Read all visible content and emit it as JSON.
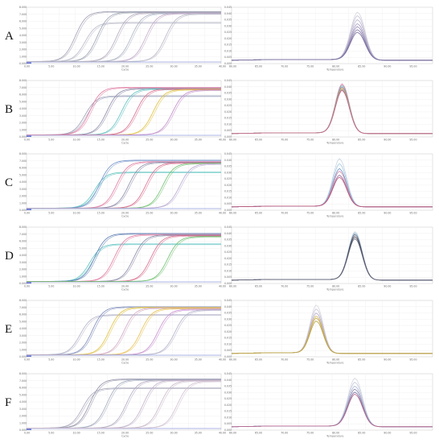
{
  "figure": {
    "rows": [
      {
        "label": "A",
        "amp_curves": [
          {
            "ct": 10.0,
            "plateau": 1.0,
            "color": "#a0a0b4"
          },
          {
            "ct": 12.0,
            "plateau": 0.78,
            "color": "#b8b8c8"
          },
          {
            "ct": 14.5,
            "plateau": 0.99,
            "color": "#9aa0b0"
          },
          {
            "ct": 18.5,
            "plateau": 0.98,
            "color": "#b0a8bc"
          },
          {
            "ct": 21.5,
            "plateau": 0.97,
            "color": "#a8b0c0"
          },
          {
            "ct": 24.5,
            "plateau": 0.97,
            "color": "#c0a8c8"
          },
          {
            "ct": 28.5,
            "plateau": 0.96,
            "color": "#b4b4c4"
          }
        ],
        "melt": {
          "peak_temp": 84.5,
          "width": 2.0,
          "heights": [
            0.95,
            0.88,
            0.8,
            0.72,
            0.66,
            0.6,
            0.55
          ],
          "colors": [
            "#d4d4dc",
            "#c8c4d8",
            "#b8b0cc",
            "#a89cc0",
            "#9488b4",
            "#8478a8",
            "#7a6e9e"
          ]
        }
      },
      {
        "label": "B",
        "amp_curves": [
          {
            "ct": 12.0,
            "plateau": 0.78,
            "color": "#9aa0b8"
          },
          {
            "ct": 13.0,
            "plateau": 0.95,
            "color": "#e07aa0"
          },
          {
            "ct": 16.5,
            "plateau": 0.93,
            "color": "#8a8aa8"
          },
          {
            "ct": 19.5,
            "plateau": 0.92,
            "color": "#60c0c0"
          },
          {
            "ct": 22.5,
            "plateau": 0.92,
            "color": "#d86c8c"
          },
          {
            "ct": 26.0,
            "plateau": 0.91,
            "color": "#e0c040"
          },
          {
            "ct": 30.0,
            "plateau": 0.9,
            "color": "#c08ac8"
          }
        ],
        "melt": {
          "peak_temp": 81.5,
          "width": 1.9,
          "heights": [
            0.98,
            0.95,
            0.92,
            0.9,
            0.87,
            0.85
          ],
          "colors": [
            "#e07aa0",
            "#70b8c0",
            "#9a8ab8",
            "#d4a040",
            "#888898",
            "#c86a8a"
          ]
        }
      },
      {
        "label": "C",
        "amp_curves": [
          {
            "ct": 14.0,
            "plateau": 0.72,
            "color": "#5cc4c0"
          },
          {
            "ct": 15.0,
            "plateau": 0.96,
            "color": "#7090c8"
          },
          {
            "ct": 18.5,
            "plateau": 0.93,
            "color": "#e07aa0"
          },
          {
            "ct": 21.0,
            "plateau": 0.92,
            "color": "#8a8aa8"
          },
          {
            "ct": 24.5,
            "plateau": 0.91,
            "color": "#d86c8c"
          },
          {
            "ct": 28.0,
            "plateau": 0.9,
            "color": "#70c070"
          },
          {
            "ct": 31.5,
            "plateau": 0.89,
            "color": "#b8a8d0"
          }
        ],
        "melt": {
          "peak_temp": 81.0,
          "width": 1.9,
          "heights": [
            0.95,
            0.85,
            0.75,
            0.7,
            0.62,
            0.58
          ],
          "colors": [
            "#c8d4e0",
            "#a0c8e0",
            "#7090c8",
            "#d88aa8",
            "#8a6a9e",
            "#c05878"
          ]
        }
      },
      {
        "label": "D",
        "amp_curves": [
          {
            "ct": 13.0,
            "plateau": 0.75,
            "color": "#60c4c4"
          },
          {
            "ct": 14.0,
            "plateau": 0.96,
            "color": "#5a7ab0"
          },
          {
            "ct": 18.0,
            "plateau": 0.94,
            "color": "#e07aa0"
          },
          {
            "ct": 22.0,
            "plateau": 0.93,
            "color": "#8a8aa8"
          },
          {
            "ct": 25.5,
            "plateau": 0.92,
            "color": "#d86c8c"
          },
          {
            "ct": 29.0,
            "plateau": 0.9,
            "color": "#70c070"
          }
        ],
        "melt": {
          "peak_temp": 84.0,
          "width": 1.9,
          "heights": [
            0.96,
            0.93,
            0.9,
            0.86,
            0.82
          ],
          "colors": [
            "#c8d4e0",
            "#8ab0d0",
            "#5a5a70",
            "#3a3a48",
            "#6a6a80"
          ]
        }
      },
      {
        "label": "E",
        "amp_curves": [
          {
            "ct": 11.0,
            "plateau": 0.8,
            "color": "#b0b0c8"
          },
          {
            "ct": 13.5,
            "plateau": 0.96,
            "color": "#7a88b8"
          },
          {
            "ct": 17.0,
            "plateau": 0.95,
            "color": "#e0c040"
          },
          {
            "ct": 20.0,
            "plateau": 0.94,
            "color": "#d0a8c0"
          },
          {
            "ct": 23.5,
            "plateau": 0.93,
            "color": "#e8c050"
          },
          {
            "ct": 27.0,
            "plateau": 0.91,
            "color": "#c890d0"
          },
          {
            "ct": 30.5,
            "plateau": 0.9,
            "color": "#b0b0c8"
          }
        ],
        "melt": {
          "peak_temp": 76.5,
          "width": 1.8,
          "heights": [
            0.96,
            0.88,
            0.8,
            0.74,
            0.7,
            0.64
          ],
          "colors": [
            "#d8d8e0",
            "#c8c0d8",
            "#b0a8c8",
            "#d4b860",
            "#c8a848",
            "#b8a040"
          ]
        }
      },
      {
        "label": "F",
        "amp_curves": [
          {
            "ct": 11.5,
            "plateau": 0.8,
            "color": "#a8a8bc"
          },
          {
            "ct": 13.0,
            "plateau": 0.98,
            "color": "#9090a8"
          },
          {
            "ct": 16.5,
            "plateau": 0.97,
            "color": "#a0a8bc"
          },
          {
            "ct": 20.5,
            "plateau": 0.96,
            "color": "#b0a8c0"
          },
          {
            "ct": 24.0,
            "plateau": 0.96,
            "color": "#c0b0c8"
          },
          {
            "ct": 27.5,
            "plateau": 0.95,
            "color": "#c8b8c8"
          },
          {
            "ct": 31.0,
            "plateau": 0.94,
            "color": "#d0c0d0"
          }
        ],
        "melt": {
          "peak_temp": 84.0,
          "width": 2.0,
          "heights": [
            0.96,
            0.88,
            0.8,
            0.74,
            0.68,
            0.64
          ],
          "colors": [
            "#d4d4e0",
            "#c0c8dc",
            "#a8b4d0",
            "#9088b0",
            "#7a6ea0",
            "#c06a90"
          ]
        }
      }
    ]
  },
  "chart_data": [
    {
      "type": "line",
      "panel": "amplification",
      "x_axis": {
        "range": [
          0,
          40
        ],
        "ticks": [
          "0.00",
          "5.00",
          "10.00",
          "15.00",
          "20.00",
          "25.00",
          "30.00",
          "35.00",
          "40.00"
        ]
      },
      "y_axis": {
        "range": [
          0,
          8
        ]
      }
    },
    {
      "type": "line",
      "panel": "melt",
      "x_axis": {
        "range": [
          60,
          99
        ],
        "ticks": [
          "60.00",
          "65.00",
          "70.00",
          "75.00",
          "80.00",
          "85.00",
          "90.00",
          "95.00"
        ]
      },
      "y_axis": {
        "range": [
          0,
          1
        ]
      }
    }
  ]
}
